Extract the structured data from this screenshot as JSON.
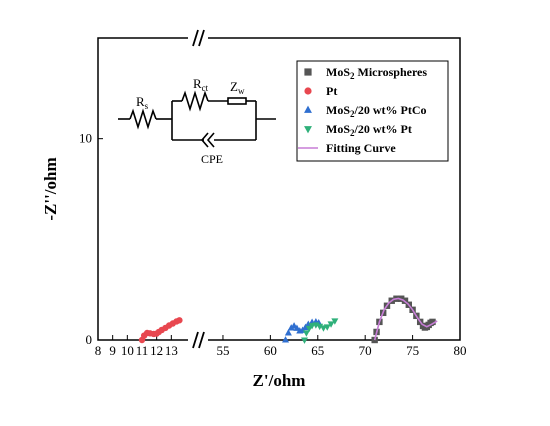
{
  "chart_data": {
    "type": "scatter",
    "title": "",
    "xlabel": "Z'/ohm",
    "ylabel": "-Z''/ohm",
    "ylim": [
      0,
      15
    ],
    "y_ticks": [
      0,
      10
    ],
    "x_segments": [
      {
        "xlim": [
          8,
          14
        ],
        "ticks": [
          8,
          9,
          10,
          11,
          12,
          13
        ],
        "tick_labels": [
          "8",
          "9",
          "10",
          "11",
          "12",
          "13"
        ]
      },
      {
        "xlim": [
          53,
          80
        ],
        "ticks": [
          55,
          60,
          65,
          70,
          75,
          80
        ],
        "tick_labels": [
          "55",
          "60",
          "65",
          "70",
          "75",
          "80"
        ]
      }
    ],
    "grid": false,
    "legend_position": "top-right",
    "series": [
      {
        "name": "MoS2 Microspheres",
        "name_main": "MoS",
        "name_sub": "2",
        "name_rest": " Microspheres",
        "marker": "square",
        "color": "#555555",
        "x": [
          71.0,
          71.2,
          71.5,
          71.9,
          72.3,
          72.8,
          73.3,
          73.8,
          74.2,
          74.6,
          75.0,
          75.4,
          75.8,
          76.1,
          76.3,
          76.5,
          76.7,
          76.9,
          77.1
        ],
        "y": [
          0.0,
          0.4,
          0.9,
          1.35,
          1.7,
          1.95,
          2.05,
          2.05,
          1.95,
          1.75,
          1.5,
          1.2,
          0.9,
          0.7,
          0.62,
          0.65,
          0.75,
          0.85,
          0.9
        ]
      },
      {
        "name": "Pt",
        "name_main": "Pt",
        "name_sub": "",
        "name_rest": "",
        "marker": "circle",
        "color": "#e8474f",
        "x": [
          11.0,
          11.15,
          11.35,
          11.55,
          11.8,
          12.0,
          12.15,
          12.35,
          12.6,
          12.85,
          13.1,
          13.35,
          13.55
        ],
        "y": [
          0.0,
          0.22,
          0.35,
          0.33,
          0.3,
          0.32,
          0.4,
          0.5,
          0.6,
          0.72,
          0.82,
          0.92,
          0.98
        ]
      },
      {
        "name": "MoS2/20 wt% PtCo",
        "name_main": "MoS",
        "name_sub": "2",
        "name_rest": "/20 wt% PtCo",
        "marker": "triangle-up",
        "color": "#2f6fd0",
        "x": [
          61.6,
          61.9,
          62.2,
          62.5,
          62.8,
          63.1,
          63.4,
          63.7,
          64.0,
          64.4,
          64.8,
          65.1
        ],
        "y": [
          0.0,
          0.35,
          0.6,
          0.7,
          0.58,
          0.45,
          0.48,
          0.62,
          0.78,
          0.88,
          0.9,
          0.85
        ]
      },
      {
        "name": "MoS2/20 wt% Pt",
        "name_main": "MoS",
        "name_sub": "2",
        "name_rest": "/20 wt% Pt",
        "marker": "triangle-down",
        "color": "#2fb07a",
        "x": [
          63.6,
          63.8,
          64.1,
          64.4,
          64.8,
          65.2,
          65.6,
          66.0,
          66.4,
          66.8
        ],
        "y": [
          0.0,
          0.35,
          0.58,
          0.72,
          0.75,
          0.68,
          0.6,
          0.65,
          0.8,
          0.95
        ]
      },
      {
        "name": "Fitting Curve",
        "name_main": "Fitting Curve",
        "name_sub": "",
        "name_rest": "",
        "marker": "line",
        "color": "#c77dd6",
        "x": [
          71.0,
          71.5,
          72.0,
          72.5,
          73.0,
          73.5,
          74.0,
          74.5,
          75.0,
          75.5,
          76.0,
          76.5,
          77.0,
          77.6
        ],
        "y": [
          0.0,
          0.9,
          1.5,
          1.85,
          2.02,
          2.06,
          1.98,
          1.8,
          1.5,
          1.12,
          0.78,
          0.66,
          0.78,
          0.95
        ]
      }
    ],
    "inset": {
      "type": "equivalent-circuit",
      "labels": {
        "rs_main": "R",
        "rs_sub": "s",
        "rct_main": "R",
        "rct_sub": "ct",
        "zw_main": "Z",
        "zw_sub": "w",
        "cpe": "CPE"
      }
    }
  }
}
